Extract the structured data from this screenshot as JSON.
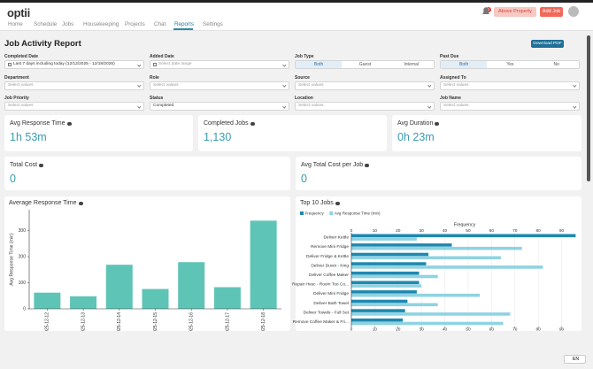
{
  "header": {
    "logo": "optii",
    "nav": [
      "Home",
      "Schedule",
      "Jobs",
      "Housekeeping",
      "Projects",
      "Chat",
      "Reports",
      "Settings"
    ],
    "notifications": 1,
    "property_button": "Above Property",
    "add_button": "Add Job",
    "language": "EN"
  },
  "page": {
    "title": "Job Activity Report",
    "download": "Download PDF"
  },
  "filters": [
    {
      "label": "Completed Date",
      "value": "Last 7 days including today (12/12/2025 - 12/18/2025)"
    },
    {
      "label": "Added Date",
      "placeholder": "Select date range"
    },
    {
      "label": "Job Type",
      "options": [
        "Both",
        "Guest",
        "Internal"
      ]
    },
    {
      "label": "Past Due",
      "options": [
        "Both",
        "Yes",
        "No"
      ]
    },
    {
      "label": "Department",
      "placeholder": "Select values"
    },
    {
      "label": "Role",
      "placeholder": "Select values"
    },
    {
      "label": "Source",
      "placeholder": "Select values"
    },
    {
      "label": "Assigned To",
      "placeholder": "Select values"
    },
    {
      "label": "Job Priority",
      "placeholder": "Select values"
    },
    {
      "label": "Status",
      "value": "Completed"
    },
    {
      "label": "Location",
      "placeholder": "Select values"
    },
    {
      "label": "Job Name",
      "placeholder": "Select values"
    }
  ],
  "kpis": [
    {
      "label": "Avg Response Time",
      "value": "1h 53m"
    },
    {
      "label": "Completed Jobs",
      "value": "1,130"
    },
    {
      "label": "Avg Duration",
      "value": "0h 23m"
    },
    {
      "label": "Total Cost",
      "value": "0"
    },
    {
      "label": "Avg Total Cost per Job",
      "value": "0"
    }
  ],
  "chart_data": [
    {
      "type": "bar",
      "title": "Average Response Time",
      "ylabel": "Avg Response Time (min)",
      "categories": [
        "2025-12-12",
        "2025-12-13",
        "2025-12-14",
        "2025-12-15",
        "2025-12-16",
        "2025-12-17",
        "2025-12-18"
      ],
      "values": [
        62,
        48,
        169,
        76,
        179,
        83,
        338
      ],
      "color": "#5ec4b6",
      "ylim": [
        0,
        380
      ],
      "yticks": [
        0,
        100,
        200,
        300
      ]
    },
    {
      "type": "barh",
      "title": "Top 10 Jobs",
      "xlabel": "Frequency",
      "categories": [
        "Deliver Kettle",
        "Remove Mini Fridge",
        "Deliver Fridge & Kettle",
        "Deliver Duvet - King",
        "Deliver Coffee Maker",
        "Repair Hvac - Room Too Co...",
        "Deliver Mini Fridge",
        "Deliver Bath Towel",
        "Deliver Towels - Full Set",
        "Remove Coffee Maker & Fri..."
      ],
      "series": [
        {
          "name": "Frequency",
          "color": "#1f88b0",
          "values": [
            96,
            43,
            33,
            32,
            29,
            29,
            28,
            24,
            23,
            22
          ]
        },
        {
          "name": "Avg Response Time (min)",
          "color": "#8fd3e2",
          "axis": "x2",
          "values": [
            28,
            73,
            64,
            82,
            37,
            30,
            55,
            37,
            68,
            65
          ]
        }
      ],
      "xlim": [
        0,
        97
      ],
      "xticks": [
        0,
        10,
        20,
        30,
        40,
        50,
        60,
        70,
        80,
        90
      ],
      "x2lim": [
        0,
        97
      ],
      "x2ticks": [
        0,
        10,
        20,
        30,
        40,
        50,
        60,
        70,
        80,
        90
      ],
      "grid": true,
      "legend": "top-left"
    }
  ]
}
